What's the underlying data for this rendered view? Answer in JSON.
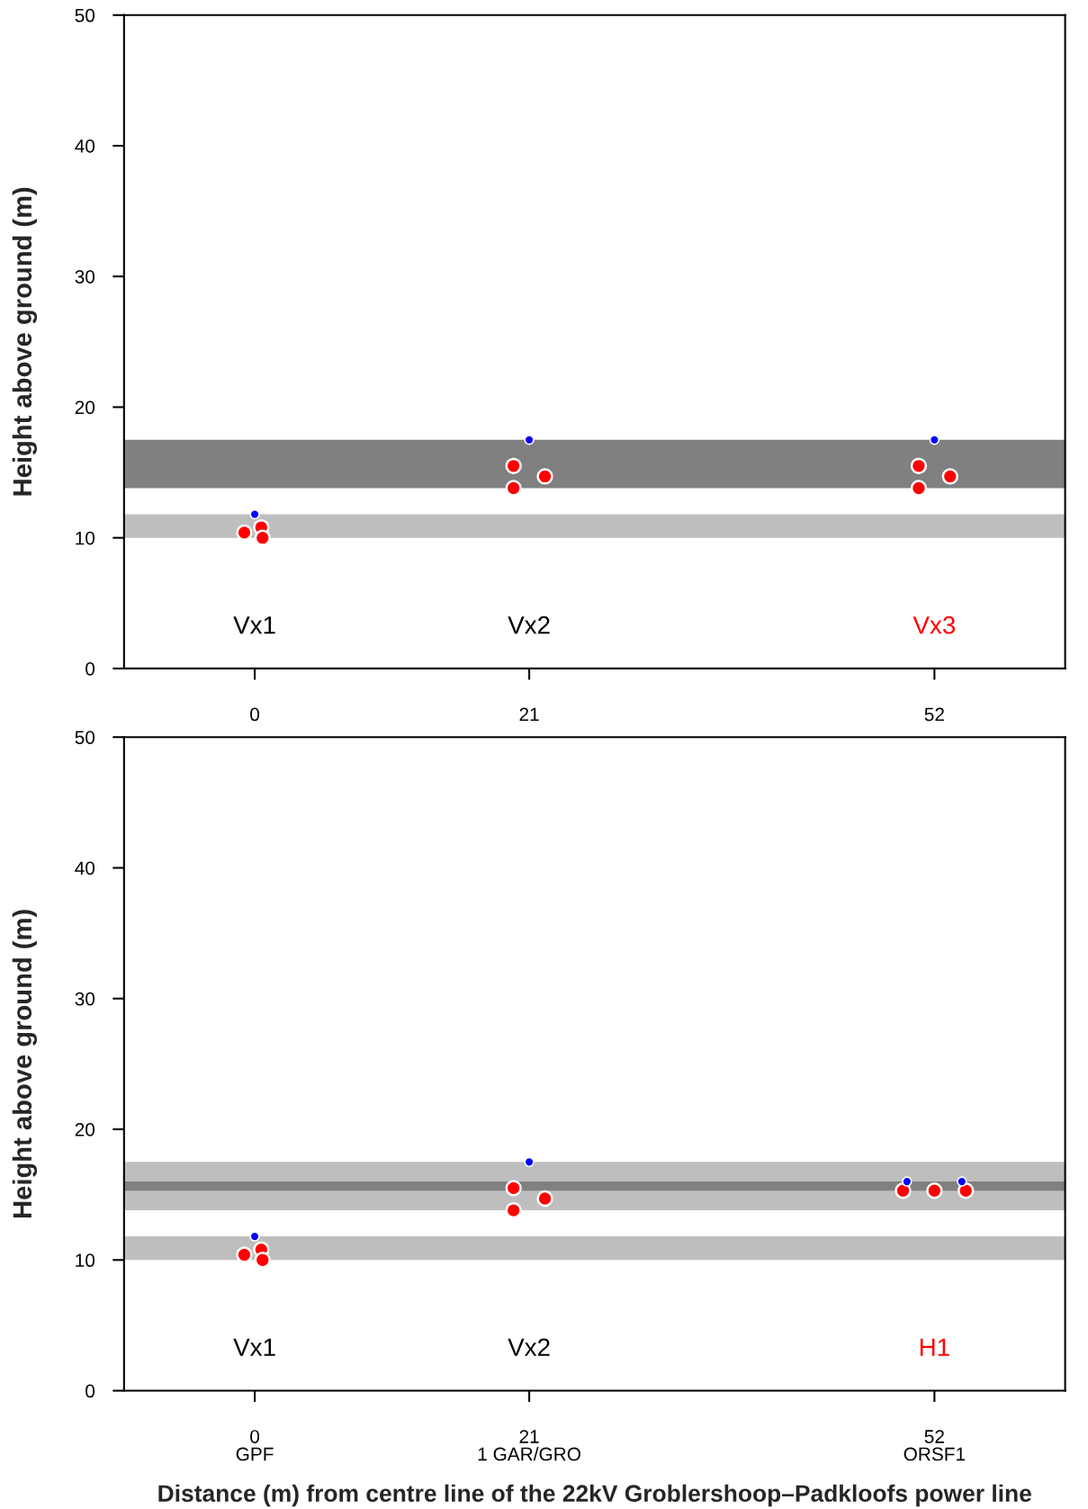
{
  "chart_data": [
    {
      "type": "scatter",
      "ylabel": "Height above ground (m)",
      "xlim": [
        -10,
        62
      ],
      "ylim": [
        0,
        50
      ],
      "xticks": [
        0,
        21,
        52
      ],
      "yticks": [
        0,
        10,
        20,
        30,
        40,
        50
      ],
      "grid": false,
      "legend": false,
      "marker": "circle",
      "series": [
        {
          "color": "#ff0000",
          "x": [
            -0.8,
            0.5,
            0.6,
            19.8,
            22.2,
            19.8,
            50.8,
            53.2,
            50.8
          ],
          "values": [
            10.4,
            10.8,
            10.0,
            15.5,
            14.7,
            13.8,
            15.5,
            14.7,
            13.8
          ]
        },
        {
          "color": "#0000ff",
          "x": [
            0,
            21,
            52
          ],
          "values": [
            11.8,
            17.5,
            17.5
          ]
        }
      ],
      "bands": [
        {
          "axis": "y",
          "from": 10,
          "to": 11.8,
          "color": "#bebebe"
        },
        {
          "axis": "y",
          "from": 13.8,
          "to": 17.5,
          "color": "#808080"
        }
      ],
      "annotations": [
        "Vx1",
        "Vx2",
        "Vx3"
      ]
    },
    {
      "type": "scatter",
      "ylabel": "Height above ground (m)",
      "xlabel": "Distance (m) from centre line of the 22kV Groblershoop–Padkloofs power line",
      "xlim": [
        -10,
        62
      ],
      "ylim": [
        0,
        50
      ],
      "xticks": [
        0,
        21,
        52
      ],
      "yticks": [
        0,
        10,
        20,
        30,
        40,
        50
      ],
      "grid": false,
      "legend": false,
      "marker": "circle",
      "series": [
        {
          "color": "#ff0000",
          "x": [
            -0.8,
            0.5,
            0.6,
            19.8,
            22.2,
            19.8,
            49.6,
            52,
            54.4
          ],
          "values": [
            10.4,
            10.8,
            10.0,
            15.5,
            14.7,
            13.8,
            15.3,
            15.3,
            15.3
          ]
        },
        {
          "color": "#0000ff",
          "x": [
            0,
            21,
            49.9,
            54.1
          ],
          "values": [
            11.8,
            17.5,
            16.0,
            16.0
          ]
        }
      ],
      "bands": [
        {
          "axis": "y",
          "from": 10,
          "to": 11.8,
          "color": "#bebebe"
        },
        {
          "axis": "y",
          "from": 13.8,
          "to": 17.5,
          "color": "#bebebe"
        },
        {
          "axis": "y",
          "from": 15.3,
          "to": 16.0,
          "color": "#808080"
        }
      ],
      "annotations": [
        "Vx1",
        "Vx2",
        "H1",
        "GPF",
        "1 GAR/GRO",
        "ORSF1"
      ]
    }
  ]
}
